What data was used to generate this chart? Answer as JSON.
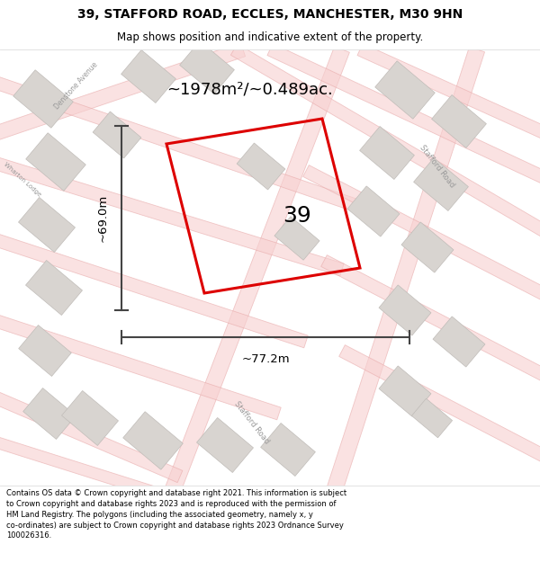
{
  "title_line1": "39, STAFFORD ROAD, ECCLES, MANCHESTER, M30 9HN",
  "title_line2": "Map shows position and indicative extent of the property.",
  "area_label": "~1978m²/~0.489ac.",
  "number_label": "39",
  "dim_height": "~69.0m",
  "dim_width": "~77.2m",
  "footer_text": "Contains OS data © Crown copyright and database right 2021. This information is subject to Crown copyright and database rights 2023 and is reproduced with the permission of HM Land Registry. The polygons (including the associated geometry, namely x, y co-ordinates) are subject to Crown copyright and database rights 2023 Ordnance Survey 100026316.",
  "map_bg": "#f5f2f0",
  "plot_outline_color": "#dd0000",
  "building_fill": "#d8d4d0",
  "building_edge": "#c0bcb8",
  "road_line_color": "#e8a0a0",
  "road_line_color2": "#f0b0b0",
  "dim_line_color": "#444444",
  "text_color": "#000000",
  "road_label_color": "#999999",
  "title_fontsize": 10,
  "subtitle_fontsize": 8.5,
  "area_fontsize": 13,
  "number_fontsize": 18,
  "dim_fontsize": 9.5,
  "footer_fontsize": 6.0
}
